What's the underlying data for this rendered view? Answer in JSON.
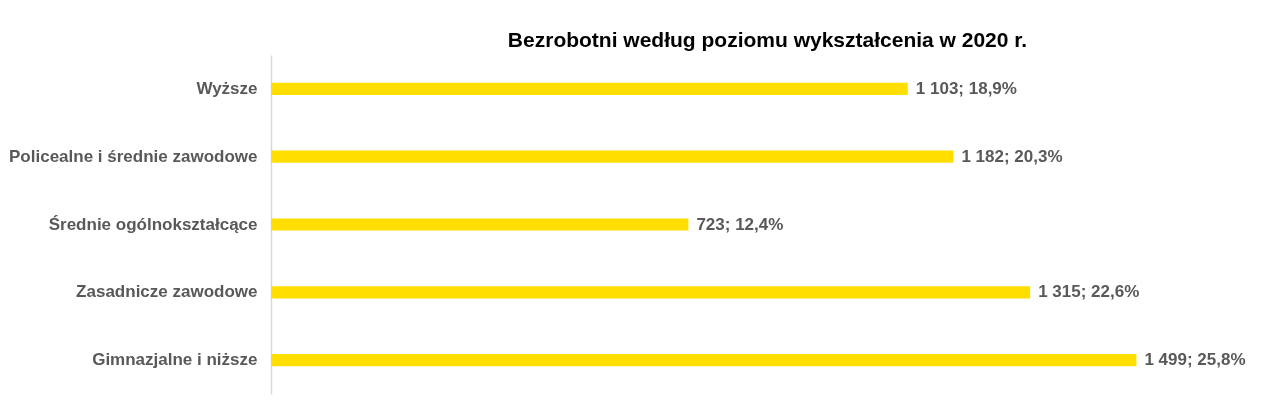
{
  "chart_data": {
    "type": "bar",
    "orientation": "horizontal",
    "title": "Bezrobotni według  poziomu wykształcenia w 2020 r.",
    "categories": [
      "Wyższe",
      "Policealne i średnie zawodowe",
      "Średnie ogólnokształcące",
      "Zasadnicze zawodowe",
      "Gimnazjalne i niższe"
    ],
    "values": [
      1103,
      1182,
      723,
      1315,
      1499
    ],
    "value_labels": [
      "1 103; 18,9%",
      "1 182; 20,3%",
      "723; 12,4%",
      "1 315; 22,6%",
      "1 499; 25,8%"
    ],
    "color": "#ffde00",
    "xlim": [
      0,
      1720
    ],
    "tick_labels": "y"
  }
}
